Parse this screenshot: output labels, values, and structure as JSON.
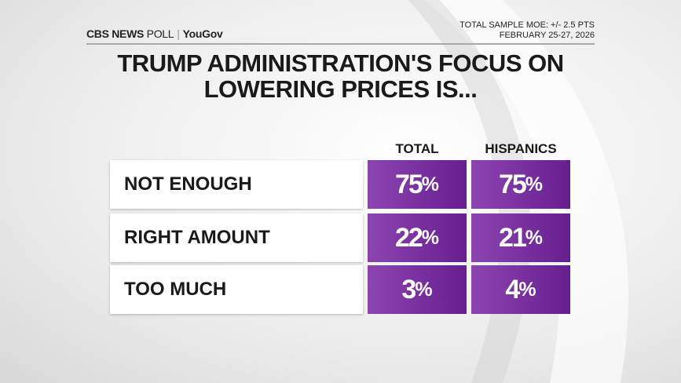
{
  "header": {
    "logo_brand": "CBS NEWS",
    "logo_poll": "POLL",
    "logo_partner": "YouGov",
    "moe": "TOTAL SAMPLE MOE: +/- 2.5 PTS",
    "date": "FEBRUARY 25-27, 2026"
  },
  "chart_data": {
    "type": "table",
    "title": "TRUMP ADMINISTRATION'S FOCUS ON LOWERING PRICES IS...",
    "columns": [
      "TOTAL",
      "HISPANICS"
    ],
    "categories": [
      "NOT ENOUGH",
      "RIGHT AMOUNT",
      "TOO MUCH"
    ],
    "series": [
      {
        "name": "TOTAL",
        "values": [
          75,
          22,
          3
        ]
      },
      {
        "name": "HISPANICS",
        "values": [
          75,
          21,
          4
        ]
      }
    ],
    "unit": "%",
    "colors": {
      "cell_start": "#8c45b0",
      "cell_end": "#671e8f"
    }
  }
}
